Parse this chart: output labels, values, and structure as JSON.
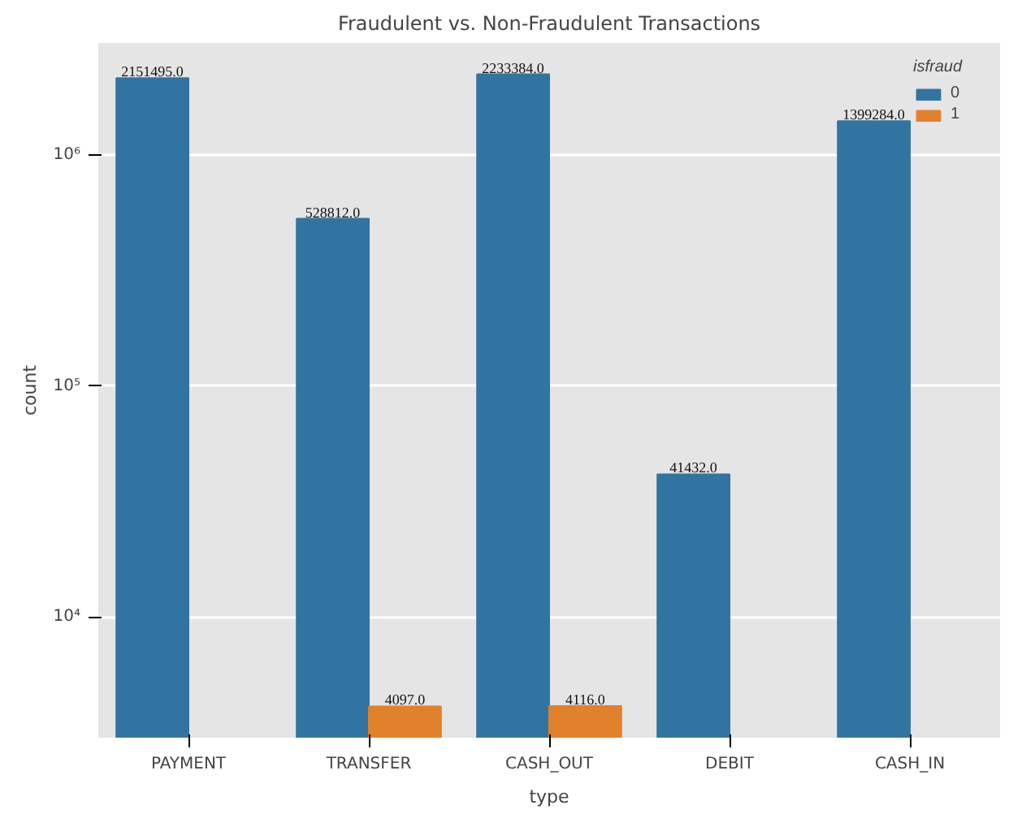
{
  "chart_data": {
    "type": "bar",
    "title": "Fraudulent vs. Non-Fraudulent Transactions",
    "xlabel": "type",
    "ylabel": "count",
    "legend_title": "isfraud",
    "categories": [
      "PAYMENT",
      "TRANSFER",
      "CASH_OUT",
      "DEBIT",
      "CASH_IN"
    ],
    "series": [
      {
        "name": "0",
        "color": "#3274a1",
        "values": [
          2151495,
          528812,
          2233384,
          41432,
          1399284
        ],
        "value_labels": [
          "2151495.0",
          "528812.0",
          "2233384.0",
          "41432.0",
          "1399284.0"
        ]
      },
      {
        "name": "1",
        "color": "#e1812c",
        "values": [
          null,
          4097,
          4116,
          null,
          null
        ],
        "value_labels": [
          null,
          "4097.0",
          "4116.0",
          null,
          null
        ]
      }
    ],
    "log": "y",
    "ylim": [
      3000,
      3050000
    ],
    "yticks": [
      {
        "value": 10000,
        "label": "10⁴"
      },
      {
        "value": 100000,
        "label": "10⁵"
      },
      {
        "value": 1000000,
        "label": "10⁶"
      }
    ],
    "grid": "y",
    "legend": "top right"
  }
}
